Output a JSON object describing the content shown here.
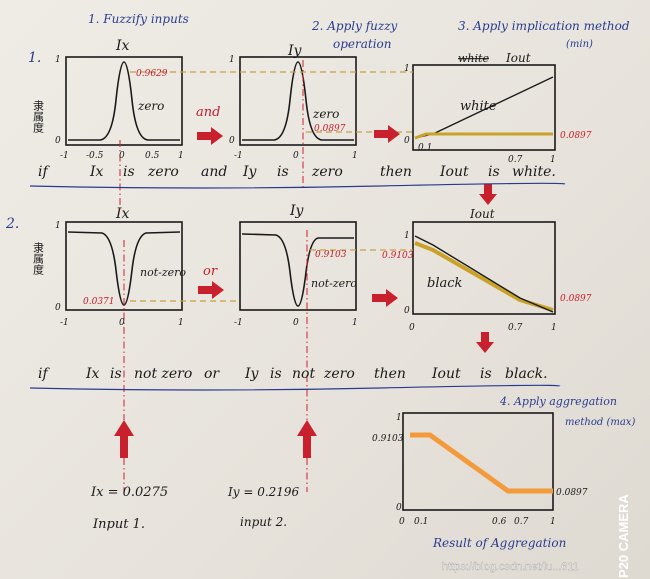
{
  "colors": {
    "ink": "#1a1a1a",
    "blue_ink": "#2a3b8f",
    "red_ink": "#c41e2a",
    "arrow_red": "#c8202c",
    "output_fill": "#c9a227",
    "aggregate_orange": "#f39a3a",
    "guide_red": "#d0202c",
    "guide_gold": "#b8860b"
  },
  "steps": {
    "step1": "1. Fuzzify inputs",
    "step2": "2. Apply fuzzy",
    "step2b": "operation",
    "step3": "3. Apply implication method",
    "step3b": "(min)",
    "step4": "4. Apply aggregation",
    "step4b": "method (max)"
  },
  "rules": {
    "r1_num": "1.",
    "r2_num": "2.",
    "rule1": [
      "if",
      "Ix",
      "is",
      "zero",
      "and",
      "Iy",
      "is",
      "zero",
      "then",
      "Iout",
      "is",
      "white."
    ],
    "rule2": [
      "if",
      "Ix",
      "is",
      "not zero",
      "or",
      "Iy",
      "is",
      "not",
      "zero",
      "then",
      "Iout",
      "is",
      "black."
    ]
  },
  "panels": {
    "ix": "Ix",
    "iy": "Iy",
    "iout": "Iout",
    "white_strike": "white",
    "ylabel": "隶属度"
  },
  "labels": {
    "zero": "zero",
    "not_zero": "not-zero",
    "white": "white",
    "black": "black",
    "and_op": "and",
    "or_op": "or"
  },
  "values": {
    "v1": "0.9629",
    "v2": "0.0897",
    "v3": "0.0897",
    "v4": "0.0371",
    "v5": "0.9103",
    "v6": "0.9103",
    "v7": "0.0897",
    "v8": "0.9103",
    "v9": "0.0897"
  },
  "ticks": {
    "m1": "-1",
    "m05": "-0.5",
    "z": "0",
    "p05": "0.5",
    "p1": "1",
    "zero": "0",
    "one": "1",
    "t01": "0.1",
    "t06": "0.6",
    "t07": "0.7"
  },
  "inputs": {
    "ix_val": "Ix = 0.0275",
    "iy_val": "Iy = 0.2196",
    "input1": "Input 1.",
    "input2": "input 2."
  },
  "result_label": "Result of Aggregation",
  "watermark": "https://blog.csdn.net/lu...611",
  "camera": "P20 CAMERA",
  "chart_data": [
    {
      "type": "line",
      "title": "Ix",
      "label": "zero",
      "x": [
        -1,
        -0.5,
        -0.1,
        0,
        0.1,
        0.5,
        1
      ],
      "y": [
        0,
        0,
        0.5,
        1,
        0.5,
        0,
        0
      ]
    },
    {
      "type": "line",
      "title": "Iy",
      "label": "zero",
      "x": [
        -1,
        -0.5,
        -0.1,
        0,
        0.1,
        0.5,
        1
      ],
      "y": [
        0,
        0,
        0.5,
        1,
        0.5,
        0,
        0
      ]
    },
    {
      "type": "line",
      "title": "Iout",
      "label": "white",
      "x": [
        0,
        0.1,
        1
      ],
      "y": [
        0,
        0.1,
        1
      ]
    },
    {
      "type": "line",
      "title": "Ix",
      "label": "not-zero",
      "x": [
        -1,
        -0.1,
        0,
        0.1,
        1
      ],
      "y": [
        1,
        1,
        0,
        1,
        1
      ]
    },
    {
      "type": "line",
      "title": "Iy",
      "label": "not-zero",
      "x": [
        -1,
        -0.1,
        0,
        0.1,
        1
      ],
      "y": [
        1,
        1,
        0,
        1,
        1
      ]
    },
    {
      "type": "line",
      "title": "Iout",
      "label": "black",
      "x": [
        0,
        0.1,
        0.7,
        1
      ],
      "y": [
        1,
        0.9,
        0.1,
        0
      ]
    },
    {
      "type": "area",
      "title": "Result of Aggregation",
      "x": [
        0,
        0.1,
        0.6,
        0.7,
        1
      ],
      "y": [
        0.9103,
        0.9103,
        0.0897,
        0.0897,
        0.0897
      ]
    }
  ]
}
